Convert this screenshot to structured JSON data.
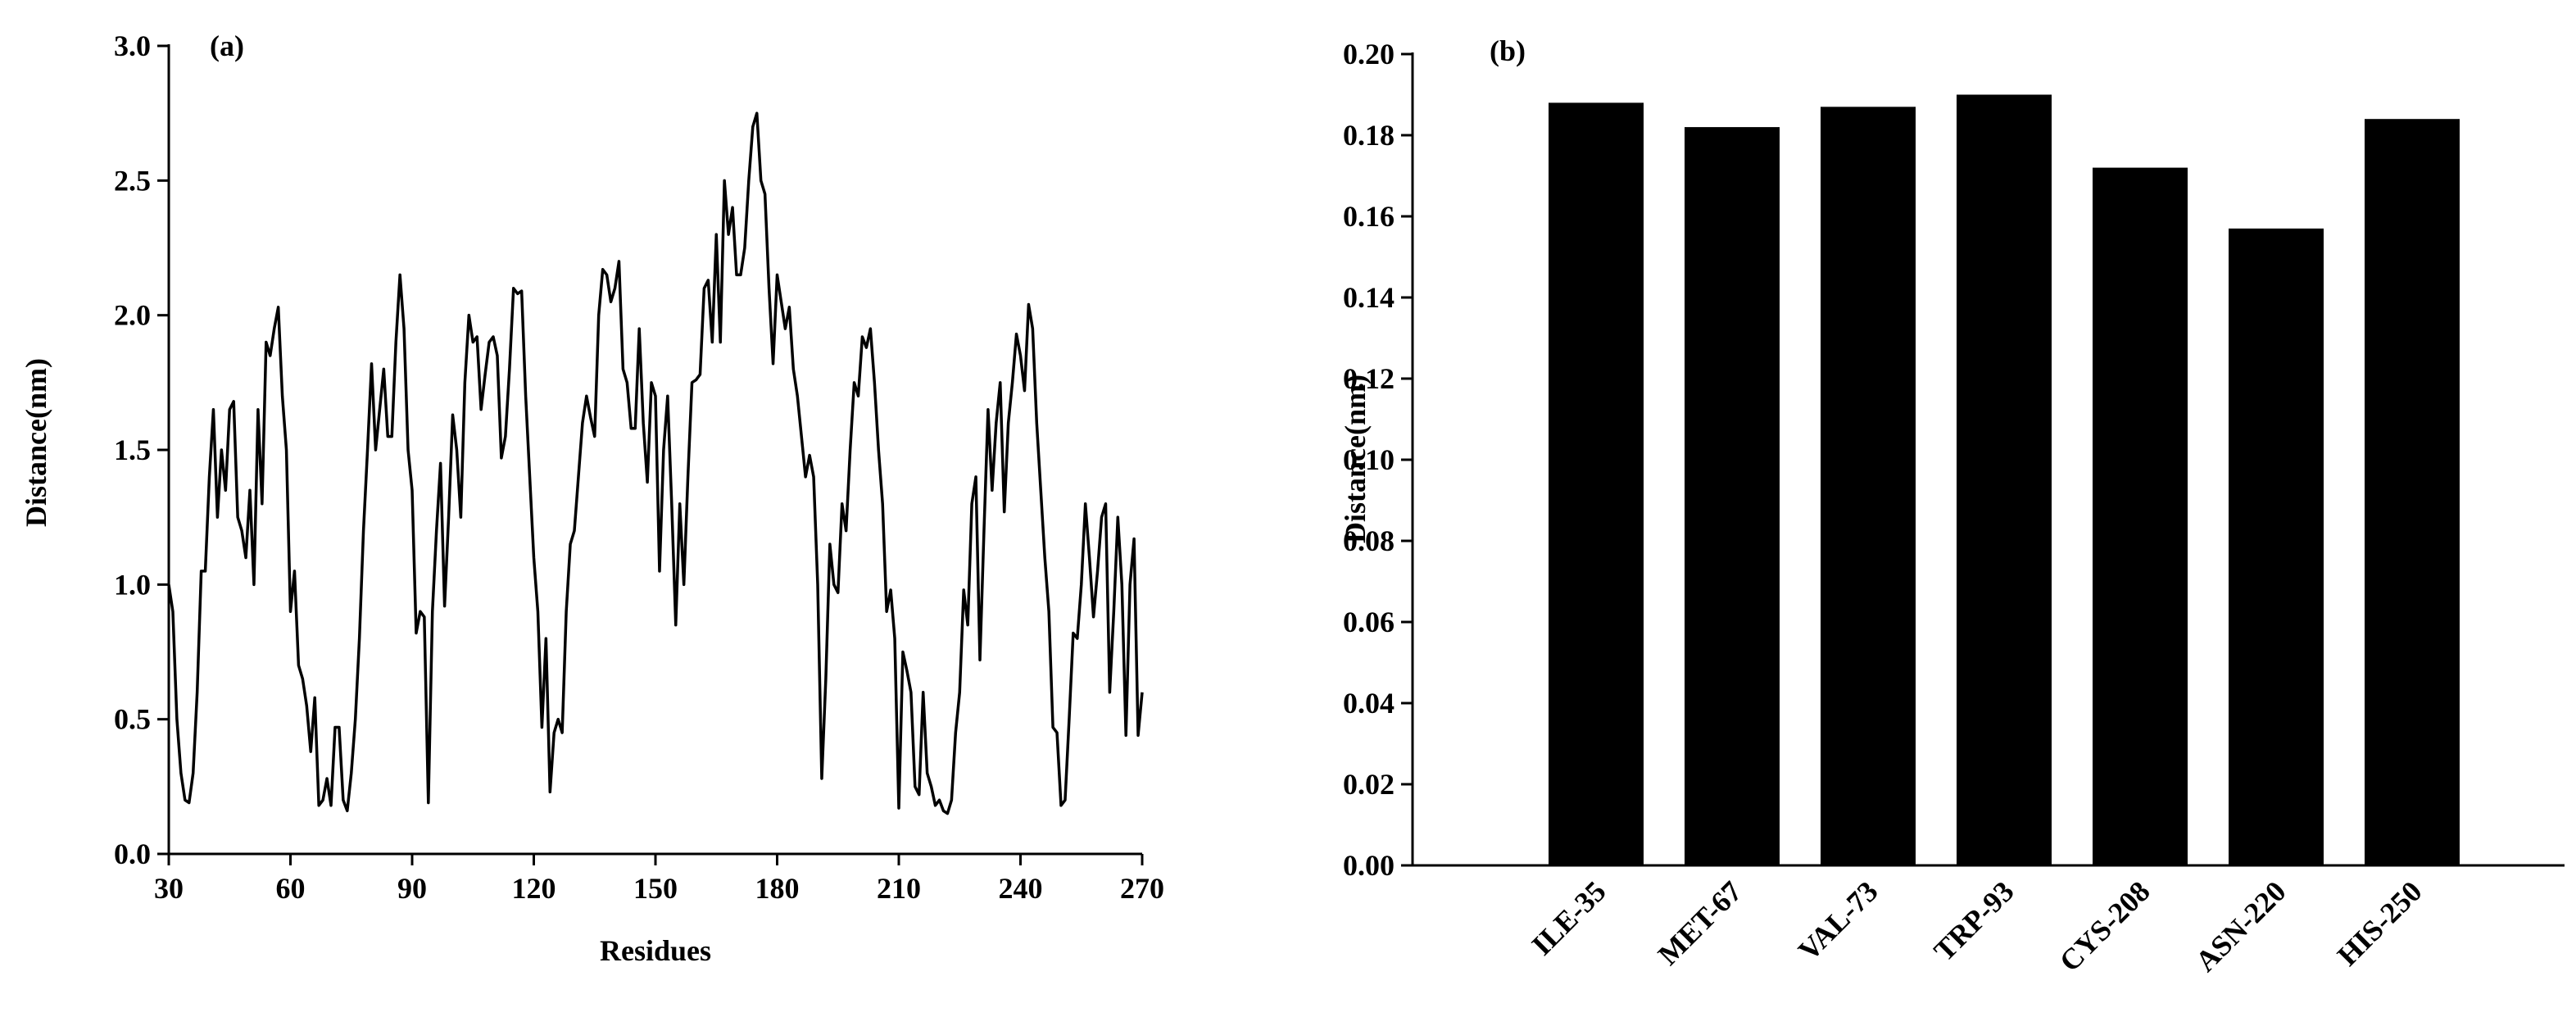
{
  "chart_data": [
    {
      "type": "line",
      "annotation": "(a)",
      "xlabel": "Residues",
      "ylabel": "Distance(nm)",
      "color": "#000000",
      "x": [
        30,
        31,
        32,
        33,
        34,
        35,
        36,
        37,
        38,
        39,
        40,
        41,
        42,
        43,
        44,
        45,
        46,
        47,
        48,
        49,
        50,
        51,
        52,
        53,
        54,
        55,
        56,
        57,
        58,
        59,
        60,
        61,
        62,
        63,
        64,
        65,
        66,
        67,
        68,
        69,
        70,
        71,
        72,
        73,
        74,
        75,
        76,
        77,
        78,
        79,
        80,
        81,
        82,
        83,
        84,
        85,
        86,
        87,
        88,
        89,
        90,
        91,
        92,
        93,
        94,
        95,
        96,
        97,
        98,
        99,
        100,
        101,
        102,
        103,
        104,
        105,
        106,
        107,
        108,
        109,
        110,
        111,
        112,
        113,
        114,
        115,
        116,
        117,
        118,
        119,
        120,
        121,
        122,
        123,
        124,
        125,
        126,
        127,
        128,
        129,
        130,
        131,
        132,
        133,
        134,
        135,
        136,
        137,
        138,
        139,
        140,
        141,
        142,
        143,
        144,
        145,
        146,
        147,
        148,
        149,
        150,
        151,
        152,
        153,
        154,
        155,
        156,
        157,
        158,
        159,
        160,
        161,
        162,
        163,
        164,
        165,
        166,
        167,
        168,
        169,
        170,
        171,
        172,
        173,
        174,
        175,
        176,
        177,
        178,
        179,
        180,
        181,
        182,
        183,
        184,
        185,
        186,
        187,
        188,
        189,
        190,
        191,
        192,
        193,
        194,
        195,
        196,
        197,
        198,
        199,
        200,
        201,
        202,
        203,
        204,
        205,
        206,
        207,
        208,
        209,
        210,
        211,
        212,
        213,
        214,
        215,
        216,
        217,
        218,
        219,
        220,
        221,
        222,
        223,
        224,
        225,
        226,
        227,
        228,
        229,
        230,
        231,
        232,
        233,
        234,
        235,
        236,
        237,
        238,
        239,
        240,
        241,
        242,
        243,
        244,
        245,
        246,
        247,
        248,
        249,
        250,
        251,
        252,
        253,
        254,
        255,
        256,
        257,
        258,
        259,
        260,
        261,
        262,
        263,
        264,
        265,
        266,
        267,
        268,
        269,
        270
      ],
      "values": [
        1.0,
        0.9,
        0.5,
        0.3,
        0.2,
        0.19,
        0.3,
        0.6,
        1.05,
        1.05,
        1.4,
        1.65,
        1.25,
        1.5,
        1.35,
        1.65,
        1.68,
        1.25,
        1.2,
        1.1,
        1.35,
        1.0,
        1.65,
        1.3,
        1.9,
        1.85,
        1.95,
        2.03,
        1.7,
        1.5,
        0.9,
        1.05,
        0.7,
        0.65,
        0.55,
        0.38,
        0.58,
        0.18,
        0.2,
        0.28,
        0.18,
        0.47,
        0.47,
        0.2,
        0.16,
        0.3,
        0.5,
        0.8,
        1.2,
        1.5,
        1.82,
        1.5,
        1.65,
        1.8,
        1.55,
        1.55,
        1.9,
        2.15,
        1.95,
        1.5,
        1.35,
        0.82,
        0.9,
        0.88,
        0.19,
        0.9,
        1.2,
        1.45,
        0.92,
        1.25,
        1.63,
        1.5,
        1.25,
        1.75,
        2.0,
        1.9,
        1.92,
        1.65,
        1.78,
        1.9,
        1.92,
        1.85,
        1.47,
        1.55,
        1.8,
        2.1,
        2.08,
        2.09,
        1.7,
        1.4,
        1.1,
        0.9,
        0.47,
        0.8,
        0.23,
        0.45,
        0.5,
        0.45,
        0.9,
        1.15,
        1.2,
        1.4,
        1.6,
        1.7,
        1.62,
        1.55,
        2.0,
        2.17,
        2.15,
        2.05,
        2.1,
        2.2,
        1.8,
        1.75,
        1.58,
        1.58,
        1.95,
        1.6,
        1.38,
        1.75,
        1.7,
        1.05,
        1.5,
        1.7,
        1.3,
        0.85,
        1.3,
        1.0,
        1.4,
        1.75,
        1.76,
        1.78,
        2.1,
        2.13,
        1.9,
        2.3,
        1.9,
        2.5,
        2.3,
        2.4,
        2.15,
        2.15,
        2.25,
        2.5,
        2.7,
        2.75,
        2.5,
        2.45,
        2.1,
        1.82,
        2.15,
        2.05,
        1.95,
        2.03,
        1.8,
        1.7,
        1.55,
        1.4,
        1.48,
        1.4,
        1.0,
        0.28,
        0.65,
        1.15,
        1.0,
        0.97,
        1.3,
        1.2,
        1.5,
        1.75,
        1.7,
        1.92,
        1.88,
        1.95,
        1.75,
        1.5,
        1.3,
        0.9,
        0.98,
        0.8,
        0.17,
        0.75,
        0.68,
        0.6,
        0.25,
        0.22,
        0.6,
        0.3,
        0.25,
        0.18,
        0.2,
        0.16,
        0.15,
        0.2,
        0.45,
        0.6,
        0.98,
        0.85,
        1.3,
        1.4,
        0.72,
        1.2,
        1.65,
        1.35,
        1.6,
        1.75,
        1.27,
        1.6,
        1.75,
        1.93,
        1.85,
        1.72,
        2.04,
        1.95,
        1.6,
        1.35,
        1.1,
        0.9,
        0.47,
        0.45,
        0.18,
        0.2,
        0.5,
        0.82,
        0.8,
        1.0,
        1.3,
        1.1,
        0.88,
        1.05,
        1.25,
        1.3,
        0.6,
        0.9,
        1.25,
        1.0,
        0.44,
        1.0,
        1.17,
        0.44,
        0.6
      ],
      "xlim": [
        30,
        270
      ],
      "xticks": [
        30,
        60,
        90,
        120,
        150,
        180,
        210,
        240,
        270
      ],
      "ylim": [
        0,
        3
      ],
      "yticks": [
        {
          "value": 0,
          "label": "0.0"
        },
        0.5,
        {
          "value": 1,
          "label": "1.0"
        },
        1.5,
        {
          "value": 2,
          "label": "2.0"
        },
        2.5,
        {
          "value": 3,
          "label": "3.0"
        }
      ]
    },
    {
      "type": "bar",
      "annotation": "(b)",
      "ylabel": "Distance(nm)",
      "color": "#000000",
      "categories": [
        "ILE-35",
        "MET-67",
        "VAL-73",
        "TRP-93",
        "CYS-208",
        "ASN-220",
        "HIS-250"
      ],
      "values": [
        0.188,
        0.182,
        0.187,
        0.19,
        0.172,
        0.157,
        0.184
      ],
      "ylim": [
        0,
        0.2
      ],
      "yticks": [
        {
          "value": 0,
          "label": "0.00"
        },
        0.02,
        0.04,
        0.06,
        0.08,
        {
          "value": 0.1,
          "label": "0.10"
        },
        0.12,
        0.14,
        0.16,
        0.18,
        {
          "value": 0.2,
          "label": "0.20"
        }
      ]
    }
  ]
}
